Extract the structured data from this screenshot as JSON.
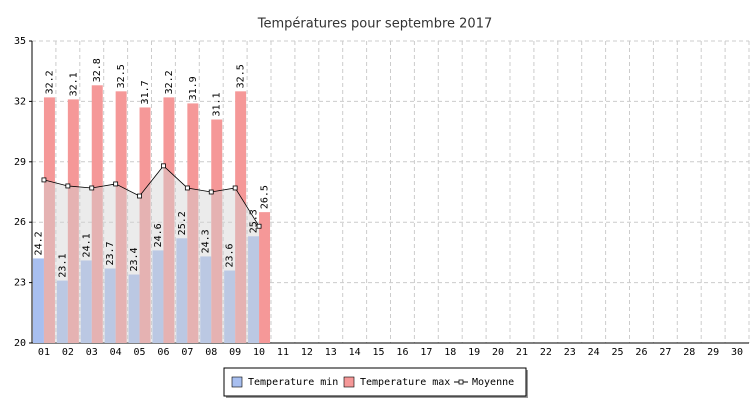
{
  "chart_data": {
    "type": "bar",
    "title": "Températures pour septembre 2017",
    "categories": [
      "01",
      "02",
      "03",
      "04",
      "05",
      "06",
      "07",
      "08",
      "09",
      "10",
      "11",
      "12",
      "13",
      "14",
      "15",
      "16",
      "17",
      "18",
      "19",
      "20",
      "21",
      "22",
      "23",
      "24",
      "25",
      "26",
      "27",
      "28",
      "29",
      "30"
    ],
    "series": [
      {
        "name": "Temperature min",
        "type": "bar",
        "color": "#a8bff0",
        "values": [
          24.2,
          23.1,
          24.1,
          23.7,
          23.4,
          24.6,
          25.2,
          24.3,
          23.6,
          25.3,
          null,
          null,
          null,
          null,
          null,
          null,
          null,
          null,
          null,
          null,
          null,
          null,
          null,
          null,
          null,
          null,
          null,
          null,
          null,
          null
        ]
      },
      {
        "name": "Temperature max",
        "type": "bar",
        "color": "#f59898",
        "values": [
          32.2,
          32.1,
          32.8,
          32.5,
          31.7,
          32.2,
          31.9,
          31.1,
          32.5,
          26.5,
          null,
          null,
          null,
          null,
          null,
          null,
          null,
          null,
          null,
          null,
          null,
          null,
          null,
          null,
          null,
          null,
          null,
          null,
          null,
          null
        ]
      },
      {
        "name": "Moyenne",
        "type": "line",
        "color": "#000000",
        "values": [
          28.1,
          27.8,
          27.7,
          27.9,
          27.3,
          28.8,
          27.7,
          27.5,
          27.7,
          25.8,
          null,
          null,
          null,
          null,
          null,
          null,
          null,
          null,
          null,
          null,
          null,
          null,
          null,
          null,
          null,
          null,
          null,
          null,
          null,
          null
        ]
      }
    ],
    "ylim": [
      20,
      35
    ],
    "yticks": [
      20,
      23,
      26,
      29,
      32,
      35
    ],
    "grid": true,
    "legend": "bottom"
  }
}
